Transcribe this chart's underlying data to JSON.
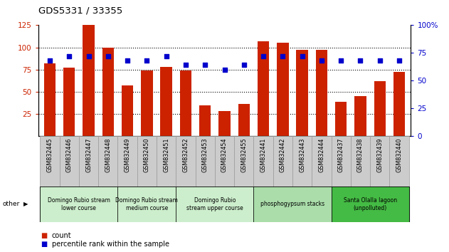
{
  "title": "GDS5331 / 33355",
  "samples": [
    "GSM832445",
    "GSM832446",
    "GSM832447",
    "GSM832448",
    "GSM832449",
    "GSM832450",
    "GSM832451",
    "GSM832452",
    "GSM832453",
    "GSM832454",
    "GSM832455",
    "GSM832441",
    "GSM832442",
    "GSM832443",
    "GSM832444",
    "GSM832437",
    "GSM832438",
    "GSM832439",
    "GSM832440"
  ],
  "counts": [
    82,
    77,
    125,
    100,
    57,
    74,
    78,
    74,
    35,
    28,
    36,
    107,
    105,
    97,
    97,
    39,
    45,
    62,
    72
  ],
  "percentiles": [
    68,
    72,
    72,
    72,
    68,
    68,
    72,
    64,
    64,
    60,
    64,
    72,
    72,
    72,
    68,
    68,
    68,
    68,
    68
  ],
  "bar_color": "#cc2200",
  "dot_color": "#0000cc",
  "ylim_left": [
    0,
    125
  ],
  "ylim_right": [
    0,
    100
  ],
  "yticks_left": [
    25,
    50,
    75,
    100,
    125
  ],
  "yticks_right": [
    0,
    25,
    50,
    75,
    100
  ],
  "groups": [
    {
      "label": "Domingo Rubio stream\nlower course",
      "start": 0,
      "end": 3,
      "color": "#cceecc"
    },
    {
      "label": "Domingo Rubio stream\nmedium course",
      "start": 4,
      "end": 6,
      "color": "#cceecc"
    },
    {
      "label": "Domingo Rubio\nstream upper course",
      "start": 7,
      "end": 10,
      "color": "#cceecc"
    },
    {
      "label": "phosphogypsum stacks",
      "start": 11,
      "end": 14,
      "color": "#aaddaa"
    },
    {
      "label": "Santa Olalla lagoon\n(unpolluted)",
      "start": 15,
      "end": 18,
      "color": "#44bb44"
    }
  ],
  "legend_count_color": "#cc2200",
  "legend_pct_color": "#0000cc",
  "other_label": "other",
  "bg_color": "#ffffff",
  "tick_bg_color": "#cccccc",
  "tick_border_color": "#999999"
}
